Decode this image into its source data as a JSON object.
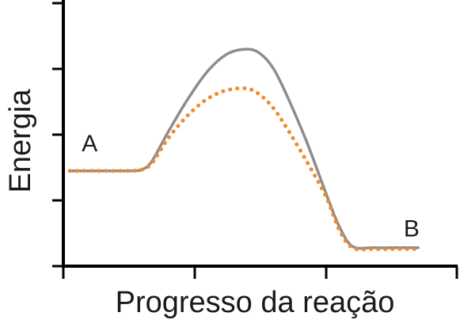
{
  "chart_data": {
    "type": "line",
    "xlabel": "Progresso da reação",
    "ylabel": "Energia",
    "xlim": [
      0,
      6
    ],
    "ylim": [
      0,
      4
    ],
    "x_ticks": [
      0,
      2,
      4,
      6
    ],
    "y_ticks": [
      0,
      1,
      2,
      3,
      4
    ],
    "grid": false,
    "annotations": [
      {
        "text": "A",
        "x": 0.4,
        "y": 1.75
      },
      {
        "text": "B",
        "x": 5.3,
        "y": 0.45
      }
    ],
    "series": [
      {
        "style": "solid",
        "color": "#8c8c8c",
        "x": [
          0.1,
          0.6,
          1.0,
          1.2,
          1.35,
          1.6,
          1.9,
          2.2,
          2.5,
          2.8,
          3.0,
          3.2,
          3.4,
          3.7,
          4.0,
          4.2,
          4.4,
          4.7,
          5.0,
          5.4
        ],
        "y": [
          1.45,
          1.45,
          1.45,
          1.47,
          1.6,
          2.05,
          2.55,
          2.97,
          3.23,
          3.3,
          3.23,
          3.0,
          2.6,
          1.9,
          1.1,
          0.6,
          0.3,
          0.28,
          0.28,
          0.28
        ]
      },
      {
        "style": "dotted",
        "color": "#f08a2c",
        "x": [
          0.1,
          0.6,
          1.0,
          1.2,
          1.35,
          1.6,
          1.9,
          2.2,
          2.5,
          2.8,
          3.0,
          3.2,
          3.4,
          3.7,
          4.0,
          4.2,
          4.4,
          4.7,
          5.0,
          5.4
        ],
        "y": [
          1.45,
          1.45,
          1.45,
          1.47,
          1.57,
          1.95,
          2.3,
          2.55,
          2.68,
          2.7,
          2.6,
          2.4,
          2.1,
          1.6,
          1.05,
          0.55,
          0.28,
          0.26,
          0.26,
          0.26
        ]
      }
    ]
  }
}
